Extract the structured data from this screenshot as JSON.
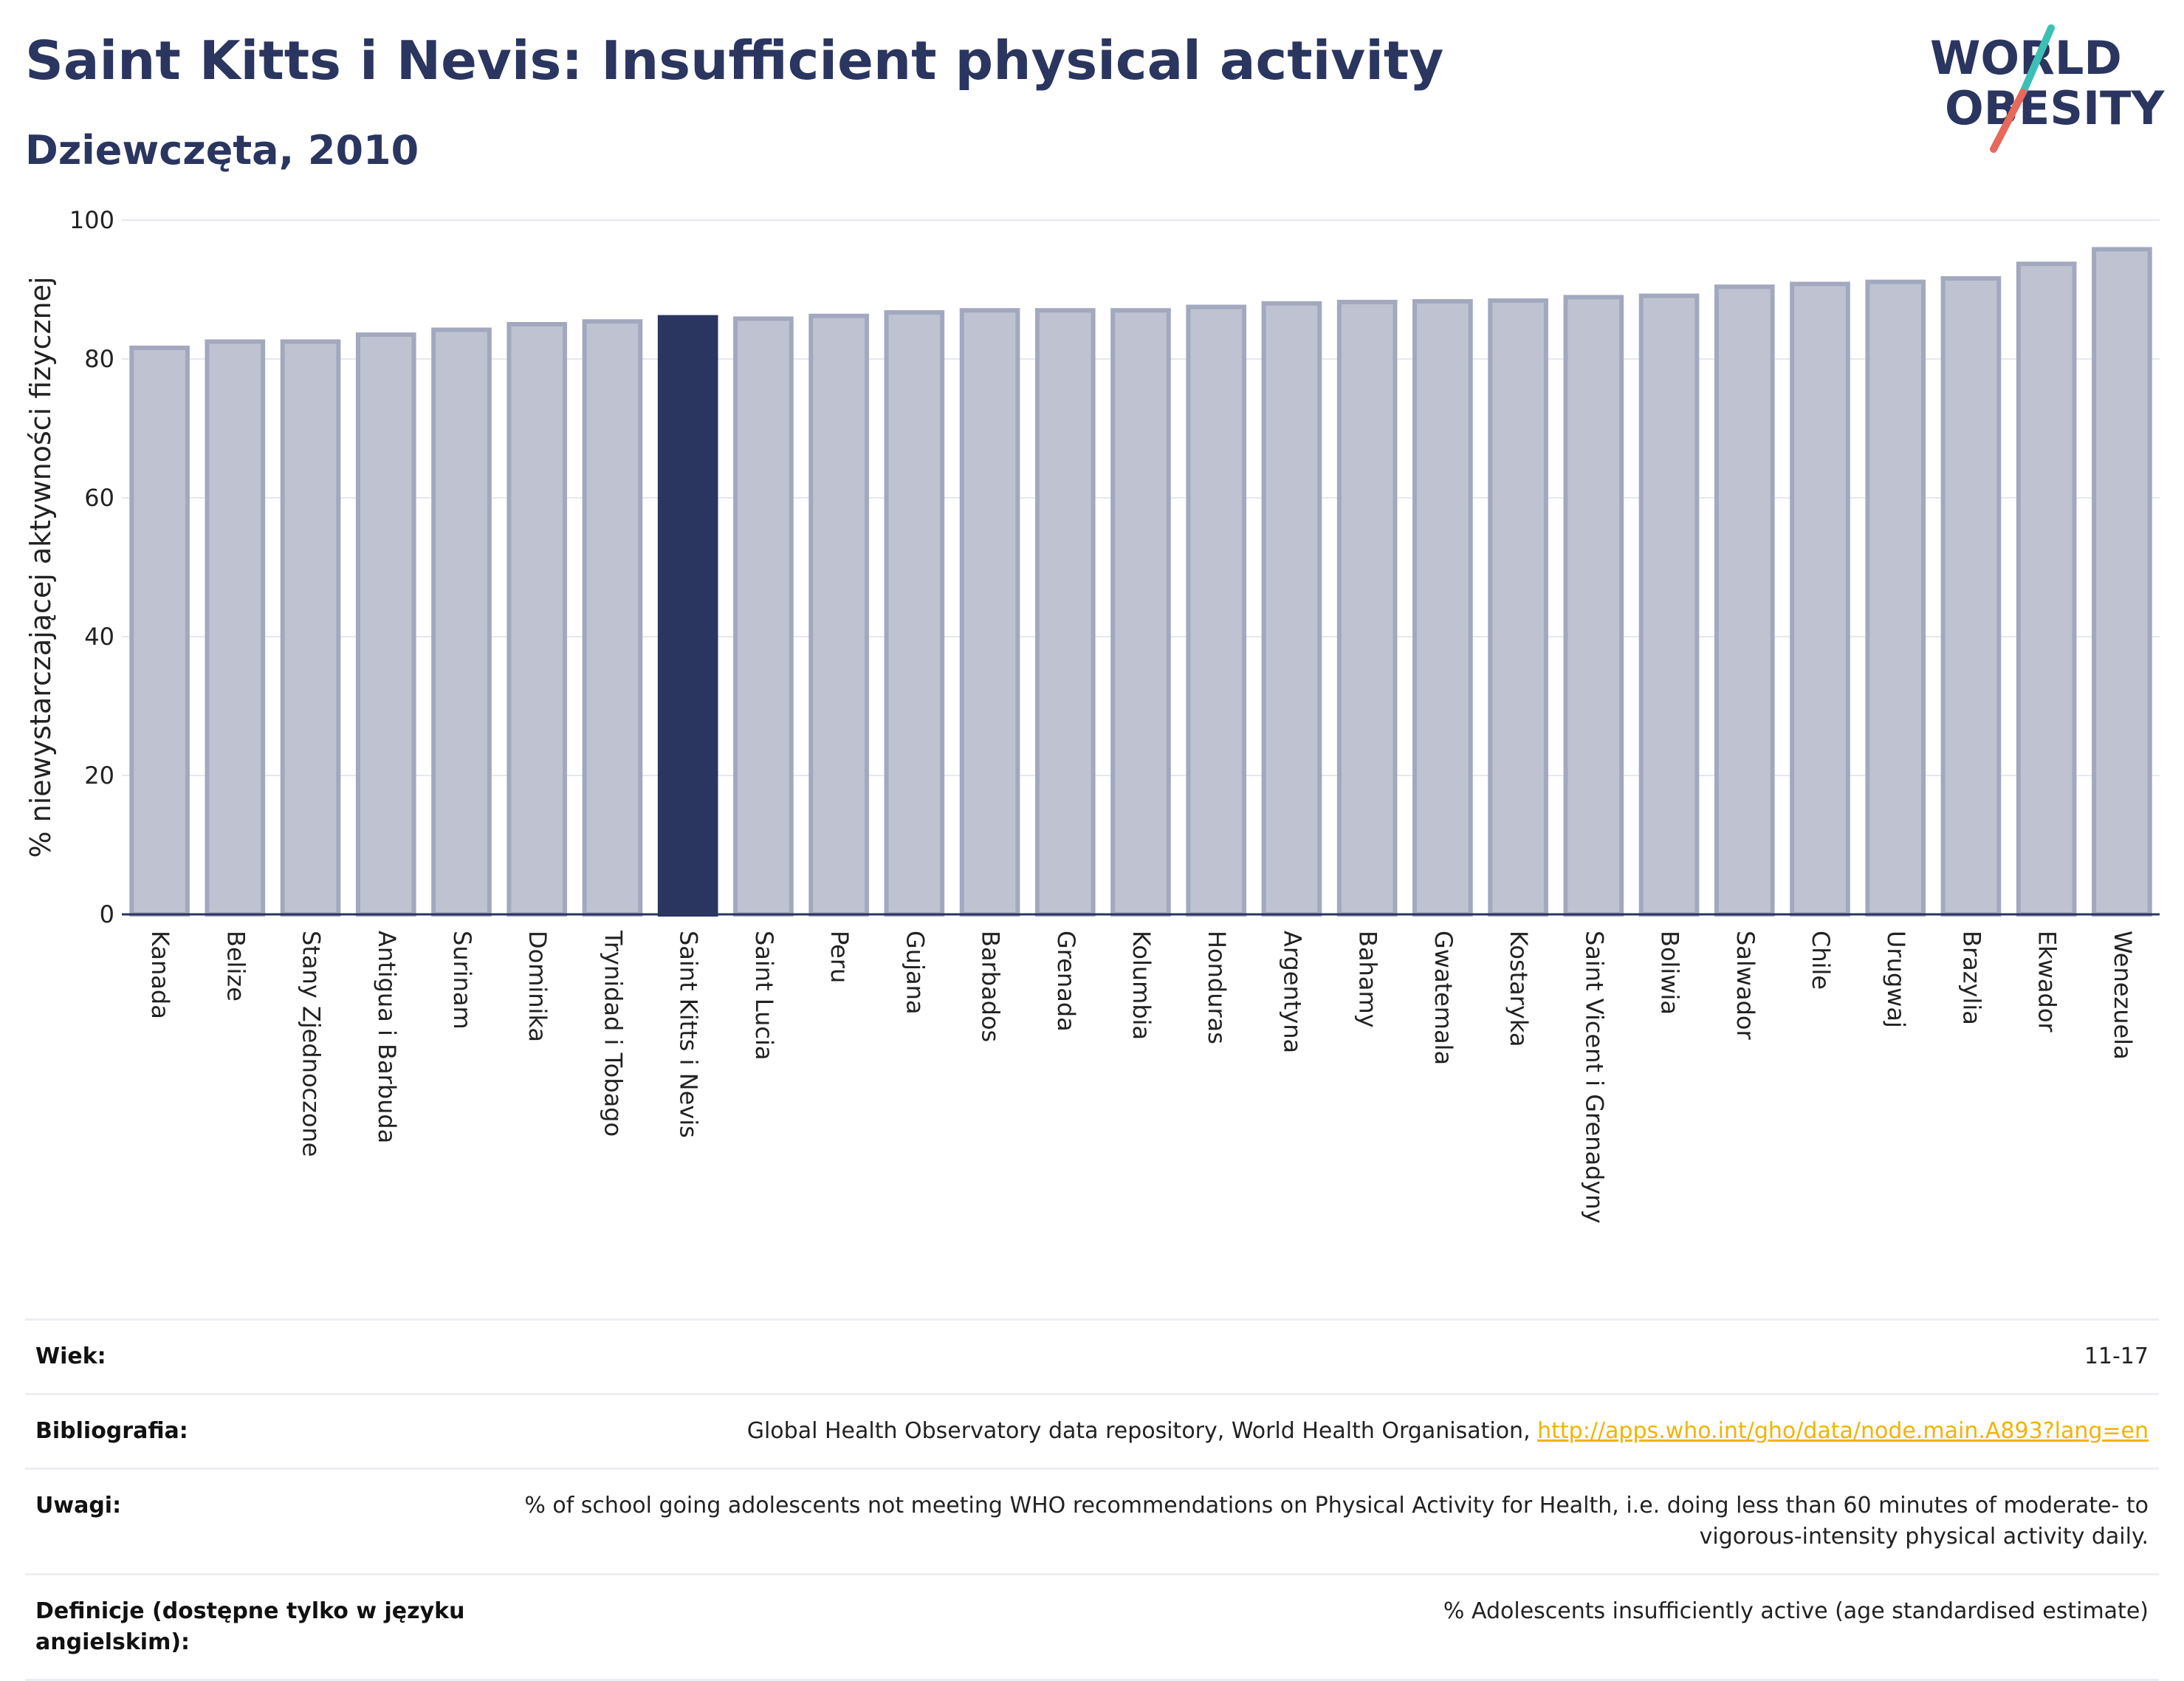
{
  "header": {
    "title": "Saint Kitts i Nevis: Insufficient physical activity",
    "subtitle": "Dziewczęta, 2010"
  },
  "logo": {
    "line1": "WORLD",
    "line2": "OBESITY",
    "colors": {
      "text": "#2a3560",
      "slash_top": "#3cbfb4",
      "slash_bottom": "#e8685a"
    }
  },
  "colors": {
    "bar_default": "#bfc3d1",
    "bar_default_stroke": "#a2a8be",
    "bar_highlight": "#2a3560",
    "gridline": "#e6e8ee",
    "axis": "#2a3560"
  },
  "chart_data": {
    "type": "bar",
    "ylabel": "% niewystarczającej aktywności fizycznej",
    "xlabel": "",
    "ylim": [
      0,
      100
    ],
    "yticks": [
      0,
      20,
      40,
      60,
      80,
      100
    ],
    "grid": true,
    "highlight": "Saint Kitts i Nevis",
    "categories": [
      "Kanada",
      "Belize",
      "Stany Zjednoczone",
      "Antigua i Barbuda",
      "Surinam",
      "Dominika",
      "Trynidad i Tobago",
      "Saint Kitts i Nevis",
      "Saint Lucia",
      "Peru",
      "Gujana",
      "Barbados",
      "Grenada",
      "Kolumbia",
      "Honduras",
      "Argentyna",
      "Bahamy",
      "Gwatemala",
      "Kostaryka",
      "Saint Vicent i Grenadyny",
      "Boliwia",
      "Salwador",
      "Chile",
      "Urugwaj",
      "Brazylia",
      "Ekwador",
      "Wenezuela"
    ],
    "values": [
      81.6,
      82.5,
      82.5,
      83.5,
      84.2,
      85.0,
      85.4,
      86.0,
      85.8,
      86.2,
      86.7,
      87.0,
      87.0,
      87.0,
      87.5,
      88.0,
      88.2,
      88.3,
      88.4,
      88.9,
      89.1,
      90.4,
      90.8,
      91.1,
      91.6,
      93.7,
      95.8
    ]
  },
  "meta": {
    "rows": [
      {
        "key": "Wiek:",
        "value": "11-17"
      },
      {
        "key": "Bibliografia:",
        "value": "Global Health Observatory data repository, World Health Organisation, ",
        "link": "http://apps.who.int/gho/data/node.main.A893?lang=en"
      },
      {
        "key": "Uwagi:",
        "value": "% of school going adolescents not meeting WHO recommendations on Physical Activity for Health, i.e. doing less than 60 minutes of moderate- to vigorous-intensity physical activity daily."
      },
      {
        "key": "Definicje (dostępne tylko w języku angielskim):",
        "value": "% Adolescents insufficiently active (age standardised estimate)"
      }
    ]
  }
}
